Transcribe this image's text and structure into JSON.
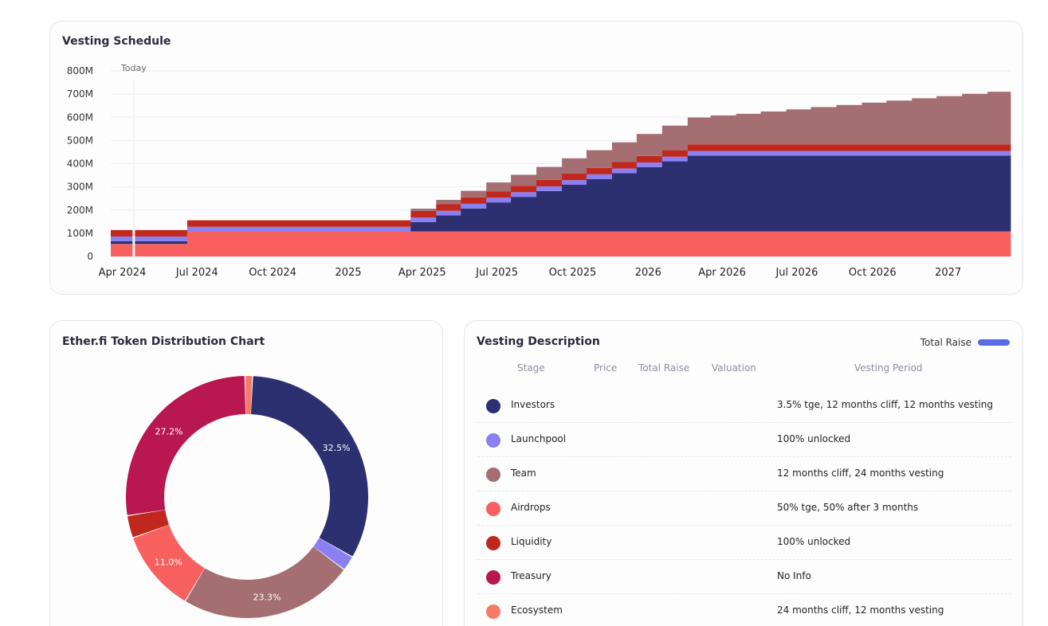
{
  "vesting_card": {
    "title": "Vesting Schedule",
    "today_label": "Today"
  },
  "distribution_card": {
    "title": "Ether.fi Token Distribution Chart"
  },
  "description_card": {
    "title": "Vesting Description",
    "legend_label": "Total Raise",
    "legend_color": "#5b6ae8",
    "headers": {
      "stage": "Stage",
      "price": "Price",
      "total_raise": "Total Raise",
      "valuation": "Valuation",
      "vesting_period": "Vesting Period"
    },
    "rows": [
      {
        "stage": "Investors",
        "color": "#2d3070",
        "vesting_period": "3.5% tge, 12 months cliff, 12 months vesting"
      },
      {
        "stage": "Launchpool",
        "color": "#8b80f2",
        "vesting_period": "100% unlocked"
      },
      {
        "stage": "Team",
        "color": "#a46e72",
        "vesting_period": "12 months cliff, 24 months vesting"
      },
      {
        "stage": "Airdrops",
        "color": "#f86060",
        "vesting_period": "50% tge, 50% after 3 months"
      },
      {
        "stage": "Liquidity",
        "color": "#c0281e",
        "vesting_period": "100% unlocked"
      },
      {
        "stage": "Treasury",
        "color": "#b8174f",
        "vesting_period": "No Info"
      },
      {
        "stage": "Ecosystem",
        "color": "#f57a68",
        "vesting_period": "24 months cliff, 12 months vesting"
      }
    ]
  },
  "chart_data": [
    {
      "type": "area",
      "title": "Vesting Schedule",
      "ylim": [
        0,
        800
      ],
      "y_ticks": [
        "0",
        "100M",
        "200M",
        "300M",
        "400M",
        "500M",
        "600M",
        "700M",
        "800M"
      ],
      "x_ticks": [
        "Apr 2024",
        "Jul 2024",
        "Oct 2024",
        "2025",
        "Apr 2025",
        "Jul 2025",
        "Oct 2025",
        "2026",
        "Apr 2026",
        "Jul 2026",
        "Oct 2026",
        "2027"
      ],
      "x_tick_dates": [
        "2024-04-01",
        "2024-07-01",
        "2024-10-01",
        "2025-01-01",
        "2025-04-01",
        "2025-07-01",
        "2025-10-01",
        "2026-01-01",
        "2026-04-01",
        "2026-07-01",
        "2026-10-01",
        "2027-01-01"
      ],
      "today": "2024-04-15",
      "grid": true,
      "stack_order": [
        "Airdrops",
        "Investors",
        "Launchpool",
        "Liquidity",
        "Team"
      ],
      "series_colors": {
        "Airdrops": "#f86060",
        "Investors": "#2d3070",
        "Launchpool": "#8b80f2",
        "Liquidity": "#c0281e",
        "Team": "#a46e72"
      },
      "steps": [
        {
          "start": "2024-03-18",
          "end": "2024-06-19",
          "Airdrops": 54,
          "Investors": 12,
          "Launchpool": 20,
          "Liquidity": 28,
          "Team": 0
        },
        {
          "start": "2024-06-19",
          "end": "2025-03-18",
          "Airdrops": 108,
          "Investors": 0,
          "Launchpool": 20,
          "Liquidity": 28,
          "Team": 0
        },
        {
          "start": "2025-03-18",
          "end": "2025-04-18",
          "Airdrops": 108,
          "Investors": 40,
          "Launchpool": 20,
          "Liquidity": 28,
          "Team": 10
        },
        {
          "start": "2025-04-18",
          "end": "2025-05-18",
          "Airdrops": 108,
          "Investors": 69,
          "Launchpool": 20,
          "Liquidity": 28,
          "Team": 19
        },
        {
          "start": "2025-05-18",
          "end": "2025-06-18",
          "Airdrops": 108,
          "Investors": 99,
          "Launchpool": 20,
          "Liquidity": 28,
          "Team": 28
        },
        {
          "start": "2025-06-18",
          "end": "2025-07-18",
          "Airdrops": 108,
          "Investors": 125,
          "Launchpool": 20,
          "Liquidity": 28,
          "Team": 38
        },
        {
          "start": "2025-07-18",
          "end": "2025-08-18",
          "Airdrops": 108,
          "Investors": 149,
          "Launchpool": 20,
          "Liquidity": 28,
          "Team": 47
        },
        {
          "start": "2025-08-18",
          "end": "2025-09-18",
          "Airdrops": 108,
          "Investors": 174,
          "Launchpool": 20,
          "Liquidity": 28,
          "Team": 56
        },
        {
          "start": "2025-09-18",
          "end": "2025-10-18",
          "Airdrops": 108,
          "Investors": 201,
          "Launchpool": 20,
          "Liquidity": 28,
          "Team": 66
        },
        {
          "start": "2025-10-18",
          "end": "2025-11-18",
          "Airdrops": 108,
          "Investors": 226,
          "Launchpool": 20,
          "Liquidity": 28,
          "Team": 76
        },
        {
          "start": "2025-11-18",
          "end": "2025-12-18",
          "Airdrops": 108,
          "Investors": 251,
          "Launchpool": 20,
          "Liquidity": 28,
          "Team": 85
        },
        {
          "start": "2025-12-18",
          "end": "2026-01-18",
          "Airdrops": 108,
          "Investors": 277,
          "Launchpool": 20,
          "Liquidity": 28,
          "Team": 95
        },
        {
          "start": "2026-01-18",
          "end": "2026-02-18",
          "Airdrops": 108,
          "Investors": 302,
          "Launchpool": 20,
          "Liquidity": 28,
          "Team": 106
        },
        {
          "start": "2026-02-18",
          "end": "2026-03-18",
          "Airdrops": 108,
          "Investors": 327,
          "Launchpool": 20,
          "Liquidity": 28,
          "Team": 116
        },
        {
          "start": "2026-03-18",
          "end": "2026-04-18",
          "Airdrops": 108,
          "Investors": 327,
          "Launchpool": 20,
          "Liquidity": 28,
          "Team": 125
        },
        {
          "start": "2026-04-18",
          "end": "2026-05-18",
          "Airdrops": 108,
          "Investors": 327,
          "Launchpool": 20,
          "Liquidity": 28,
          "Team": 132
        },
        {
          "start": "2026-05-18",
          "end": "2026-06-18",
          "Airdrops": 108,
          "Investors": 327,
          "Launchpool": 20,
          "Liquidity": 28,
          "Team": 142
        },
        {
          "start": "2026-06-18",
          "end": "2026-07-18",
          "Airdrops": 108,
          "Investors": 327,
          "Launchpool": 20,
          "Liquidity": 28,
          "Team": 151
        },
        {
          "start": "2026-07-18",
          "end": "2026-08-18",
          "Airdrops": 108,
          "Investors": 327,
          "Launchpool": 20,
          "Liquidity": 28,
          "Team": 161
        },
        {
          "start": "2026-08-18",
          "end": "2026-09-18",
          "Airdrops": 108,
          "Investors": 327,
          "Launchpool": 20,
          "Liquidity": 28,
          "Team": 170
        },
        {
          "start": "2026-09-18",
          "end": "2026-10-18",
          "Airdrops": 108,
          "Investors": 327,
          "Launchpool": 20,
          "Liquidity": 28,
          "Team": 180
        },
        {
          "start": "2026-10-18",
          "end": "2026-11-18",
          "Airdrops": 108,
          "Investors": 327,
          "Launchpool": 20,
          "Liquidity": 28,
          "Team": 189
        },
        {
          "start": "2026-11-18",
          "end": "2026-12-18",
          "Airdrops": 108,
          "Investors": 327,
          "Launchpool": 20,
          "Liquidity": 28,
          "Team": 199
        },
        {
          "start": "2026-12-18",
          "end": "2027-01-18",
          "Airdrops": 108,
          "Investors": 327,
          "Launchpool": 20,
          "Liquidity": 28,
          "Team": 208
        },
        {
          "start": "2027-01-18",
          "end": "2027-02-18",
          "Airdrops": 108,
          "Investors": 327,
          "Launchpool": 20,
          "Liquidity": 28,
          "Team": 218
        },
        {
          "start": "2027-02-18",
          "end": "2027-03-18",
          "Airdrops": 108,
          "Investors": 327,
          "Launchpool": 20,
          "Liquidity": 28,
          "Team": 227
        }
      ]
    },
    {
      "type": "pie",
      "title": "Ether.fi Token Distribution Chart",
      "slices": [
        {
          "name": "Investors",
          "value": 32.5,
          "label": "32.5%",
          "color": "#2d3070"
        },
        {
          "name": "Launchpool",
          "value": 2.0,
          "label": "",
          "color": "#8b80f2"
        },
        {
          "name": "Team",
          "value": 23.3,
          "label": "23.3%",
          "color": "#a46e72"
        },
        {
          "name": "Airdrops",
          "value": 11.0,
          "label": "11.0%",
          "color": "#f86060"
        },
        {
          "name": "Liquidity",
          "value": 3.0,
          "label": "",
          "color": "#c0281e"
        },
        {
          "name": "Treasury",
          "value": 27.2,
          "label": "27.2%",
          "color": "#b8174f"
        },
        {
          "name": "Ecosystem",
          "value": 1.0,
          "label": "",
          "color": "#f57a68"
        }
      ]
    }
  ]
}
